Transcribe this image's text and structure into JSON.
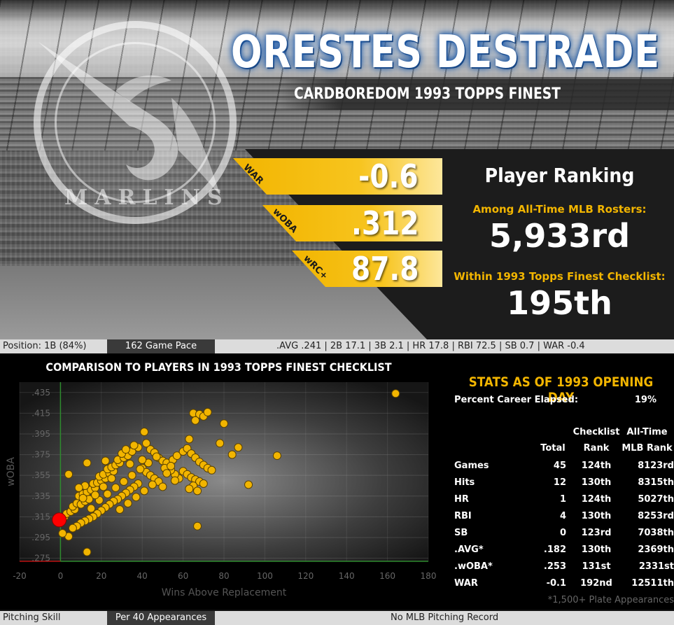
{
  "header": {
    "player_name": "ORESTES DESTRADE",
    "subtitle": "CARDBOREDOM 1993 TOPPS FINEST",
    "logo_text": "MARLINS"
  },
  "metrics": [
    {
      "label": "WAR",
      "value": "-0.6"
    },
    {
      "label": "wOBA",
      "value": ".312"
    },
    {
      "label": "wRC+",
      "value": "87.8"
    }
  ],
  "ranking": {
    "title": "Player Ranking",
    "all_time_label": "Among All-Time MLB Rosters:",
    "all_time_value": "5,933rd",
    "checklist_label": "Within 1993 Topps Finest Checklist:",
    "checklist_value": "195th"
  },
  "batting_bar": {
    "position": "Position: 1B (84%)",
    "pace_label": "162 Game Pace",
    "line": ".AVG  .241  |  2B  17.1  |  3B  2.1  |  HR  17.8  |  RBI  72.5  |  SB  0.7  |  WAR  -0.4"
  },
  "pitching_bar": {
    "label": "Pitching Skill",
    "pace_label": "Per 40 Appearances",
    "value": "No MLB Pitching Record"
  },
  "chart_data": {
    "type": "scatter",
    "title": "COMPARISON TO PLAYERS IN 1993 TOPPS FINEST CHECKLIST",
    "xlabel": "Wins Above Replacement",
    "ylabel": "wOBA",
    "xlim": [
      -20,
      180
    ],
    "ylim": [
      0.272,
      0.445
    ],
    "xticks": [
      -20,
      0,
      20,
      40,
      60,
      80,
      100,
      120,
      140,
      160,
      180
    ],
    "yticks": [
      ".275",
      ".295",
      ".315",
      ".335",
      ".355",
      ".375",
      ".395",
      ".415",
      ".435"
    ],
    "highlight": {
      "x": -0.6,
      "y": 0.312,
      "color": "#ff0000"
    },
    "point_color": "#f2b500",
    "points": [
      [
        164,
        0.434
      ],
      [
        80,
        0.405
      ],
      [
        65,
        0.415
      ],
      [
        68,
        0.414
      ],
      [
        70,
        0.412
      ],
      [
        66,
        0.408
      ],
      [
        72,
        0.416
      ],
      [
        41,
        0.397
      ],
      [
        63,
        0.39
      ],
      [
        78,
        0.386
      ],
      [
        87,
        0.382
      ],
      [
        106,
        0.374
      ],
      [
        84,
        0.375
      ],
      [
        92,
        0.346
      ],
      [
        67,
        0.306
      ],
      [
        13,
        0.281
      ],
      [
        4,
        0.296
      ],
      [
        1,
        0.299
      ],
      [
        2,
        0.315
      ],
      [
        3,
        0.318
      ],
      [
        5,
        0.32
      ],
      [
        7,
        0.322
      ],
      [
        6,
        0.325
      ],
      [
        8,
        0.328
      ],
      [
        10,
        0.327
      ],
      [
        12,
        0.33
      ],
      [
        14,
        0.332
      ],
      [
        9,
        0.335
      ],
      [
        11,
        0.337
      ],
      [
        13,
        0.339
      ],
      [
        15,
        0.341
      ],
      [
        17,
        0.343
      ],
      [
        12,
        0.345
      ],
      [
        16,
        0.347
      ],
      [
        18,
        0.348
      ],
      [
        20,
        0.35
      ],
      [
        22,
        0.352
      ],
      [
        19,
        0.354
      ],
      [
        21,
        0.356
      ],
      [
        24,
        0.357
      ],
      [
        26,
        0.359
      ],
      [
        23,
        0.361
      ],
      [
        25,
        0.363
      ],
      [
        27,
        0.365
      ],
      [
        29,
        0.367
      ],
      [
        22,
        0.369
      ],
      [
        28,
        0.37
      ],
      [
        31,
        0.372
      ],
      [
        33,
        0.374
      ],
      [
        30,
        0.376
      ],
      [
        35,
        0.378
      ],
      [
        32,
        0.38
      ],
      [
        38,
        0.382
      ],
      [
        36,
        0.384
      ],
      [
        42,
        0.386
      ],
      [
        44,
        0.38
      ],
      [
        46,
        0.377
      ],
      [
        48,
        0.372
      ],
      [
        50,
        0.369
      ],
      [
        52,
        0.367
      ],
      [
        55,
        0.37
      ],
      [
        57,
        0.374
      ],
      [
        60,
        0.378
      ],
      [
        62,
        0.381
      ],
      [
        64,
        0.376
      ],
      [
        66,
        0.372
      ],
      [
        68,
        0.368
      ],
      [
        70,
        0.365
      ],
      [
        72,
        0.362
      ],
      [
        60,
        0.359
      ],
      [
        62,
        0.356
      ],
      [
        64,
        0.353
      ],
      [
        66,
        0.351
      ],
      [
        68,
        0.349
      ],
      [
        70,
        0.347
      ],
      [
        65,
        0.345
      ],
      [
        63,
        0.342
      ],
      [
        67,
        0.34
      ],
      [
        58,
        0.352
      ],
      [
        56,
        0.356
      ],
      [
        54,
        0.36
      ],
      [
        40,
        0.362
      ],
      [
        42,
        0.358
      ],
      [
        44,
        0.355
      ],
      [
        46,
        0.352
      ],
      [
        48,
        0.349
      ],
      [
        38,
        0.347
      ],
      [
        36,
        0.344
      ],
      [
        34,
        0.341
      ],
      [
        32,
        0.338
      ],
      [
        30,
        0.335
      ],
      [
        28,
        0.332
      ],
      [
        26,
        0.33
      ],
      [
        24,
        0.327
      ],
      [
        22,
        0.324
      ],
      [
        20,
        0.321
      ],
      [
        18,
        0.318
      ],
      [
        16,
        0.315
      ],
      [
        14,
        0.313
      ],
      [
        12,
        0.311
      ],
      [
        10,
        0.309
      ],
      [
        8,
        0.306
      ],
      [
        6,
        0.304
      ],
      [
        15,
        0.323
      ],
      [
        19,
        0.331
      ],
      [
        23,
        0.337
      ],
      [
        27,
        0.343
      ],
      [
        31,
        0.349
      ],
      [
        35,
        0.355
      ],
      [
        39,
        0.361
      ],
      [
        43,
        0.367
      ],
      [
        47,
        0.373
      ],
      [
        51,
        0.362
      ],
      [
        45,
        0.346
      ],
      [
        41,
        0.34
      ],
      [
        37,
        0.334
      ],
      [
        33,
        0.328
      ],
      [
        29,
        0.322
      ],
      [
        52,
        0.357
      ],
      [
        54,
        0.364
      ],
      [
        56,
        0.35
      ],
      [
        74,
        0.36
      ],
      [
        13,
        0.367
      ],
      [
        4,
        0.356
      ],
      [
        9,
        0.343
      ],
      [
        11,
        0.333
      ],
      [
        17,
        0.336
      ],
      [
        21,
        0.344
      ],
      [
        25,
        0.352
      ],
      [
        50,
        0.344
      ],
      [
        40,
        0.37
      ],
      [
        34,
        0.366
      ]
    ]
  },
  "stats": {
    "title": "STATS AS OF 1993 OPENING DAY",
    "career_label": "Percent Career Elapsed:",
    "career_value": "19%",
    "headers": {
      "total": "Total",
      "rank_top": "Checklist",
      "rank_bottom": "Rank",
      "all_top": "All-Time",
      "all_bottom": "MLB Rank"
    },
    "rows": [
      {
        "label": "Games",
        "total": "45",
        "rank": "124th",
        "all": "8123rd"
      },
      {
        "label": "Hits",
        "total": "12",
        "rank": "130th",
        "all": "8315th"
      },
      {
        "label": "HR",
        "total": "1",
        "rank": "124th",
        "all": "5027th"
      },
      {
        "label": "RBI",
        "total": "4",
        "rank": "130th",
        "all": "8253rd"
      },
      {
        "label": "SB",
        "total": "0",
        "rank": "123rd",
        "all": "7038th"
      },
      {
        "label": ".AVG*",
        "total": ".182",
        "rank": "130th",
        "all": "2369th"
      },
      {
        "label": ".wOBA*",
        "total": ".253",
        "rank": "131st",
        "all": "2331st"
      },
      {
        "label": "WAR",
        "total": "-0.1",
        "rank": "192nd",
        "all": "12511th"
      }
    ],
    "footnote": "*1,500+ Plate Appearances"
  }
}
